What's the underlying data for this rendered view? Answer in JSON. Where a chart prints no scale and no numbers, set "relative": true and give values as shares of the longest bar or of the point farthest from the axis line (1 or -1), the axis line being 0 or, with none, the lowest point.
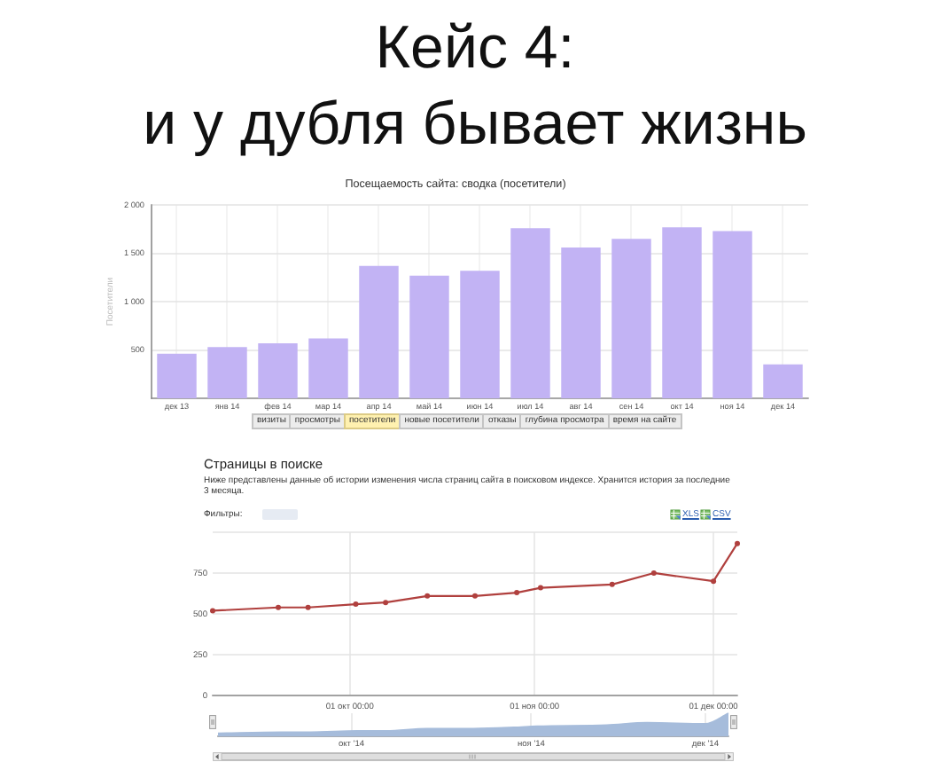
{
  "chart_data": [
    {
      "type": "other",
      "title": "Кейс 4:",
      "subtitle": "и у дубля бывает жизнь"
    },
    {
      "type": "bar",
      "title": "Посещаемость сайта: сводка (посетители)",
      "ylabel": "Посетители",
      "categories": [
        "дек 13",
        "янв 14",
        "фев 14",
        "мар 14",
        "апр 14",
        "май 14",
        "июн 14",
        "июл 14",
        "авг 14",
        "сен 14",
        "окт 14",
        "ноя 14",
        "дек 14"
      ],
      "values": [
        460,
        530,
        570,
        620,
        1370,
        1270,
        1320,
        1760,
        1560,
        1650,
        1770,
        1730,
        350
      ],
      "color": "#c2b3f4",
      "ylim": [
        0,
        2000
      ],
      "yticks": [
        500,
        {
          "value": 1000,
          "label": "1 000"
        },
        {
          "value": 1500,
          "label": "1 500"
        },
        {
          "value": 2000,
          "label": "2 000"
        }
      ],
      "grid": true,
      "annotations": [
        "визиты",
        "просмотры",
        "посетители",
        "новые посетители",
        "отказы",
        "глубина просмотра",
        "время на сайте"
      ]
    },
    {
      "type": "line",
      "title": "Страницы в поиске",
      "subtitle": "Ниже представлены данные об истории изменения числа страниц сайта в поисковом индексе. Хранится история за последние 3 месяца.",
      "x": [
        "--09-08",
        "--09-19",
        "--09-24",
        "--10-02",
        "--10-07",
        "--10-14",
        "--10-22",
        "--10-29",
        "--11-02",
        "--11-14",
        "--11-21",
        "--12-01",
        "--12-05"
      ],
      "values": [
        520,
        540,
        540,
        560,
        570,
        610,
        610,
        630,
        660,
        680,
        750,
        700,
        930
      ],
      "color": "#b0403e",
      "marker": "circle",
      "xlim": [
        "--09-08",
        "--12-05"
      ],
      "xticks": [
        {
          "value": "--10-01",
          "label": "01 окт 00:00"
        },
        {
          "value": "--11-01",
          "label": "01 ноя 00:00"
        },
        {
          "value": "--12-01",
          "label": "01 дек 00:00"
        }
      ],
      "ylim": [
        0,
        1000
      ],
      "yticks": [
        0,
        250,
        500,
        750,
        {
          "value": 1000,
          "label": null
        }
      ],
      "grid": true,
      "annotations": [
        "Фильтры:",
        "XLS",
        "CSV"
      ]
    },
    {
      "type": "area",
      "x": [
        "--09-08",
        "--09-19",
        "--09-24",
        "--10-02",
        "--10-07",
        "--10-14",
        "--10-22",
        "--10-29",
        "--11-02",
        "--11-14",
        "--11-21",
        "--12-01",
        "--12-05"
      ],
      "values": [
        0.15,
        0.2,
        0.2,
        0.25,
        0.25,
        0.35,
        0.35,
        0.4,
        0.45,
        0.5,
        0.6,
        0.55,
        1
      ],
      "relative": true,
      "color": "#a6bcdb",
      "xlim": [
        "--09-08",
        "--12-05"
      ],
      "xticks": [
        {
          "value": "--10-01",
          "label": "окт '14"
        },
        {
          "value": "--11-01",
          "label": "ноя '14"
        },
        {
          "value": "--12-01",
          "label": "дек '14"
        }
      ],
      "grid": "x",
      "tick_labels": "x"
    }
  ]
}
